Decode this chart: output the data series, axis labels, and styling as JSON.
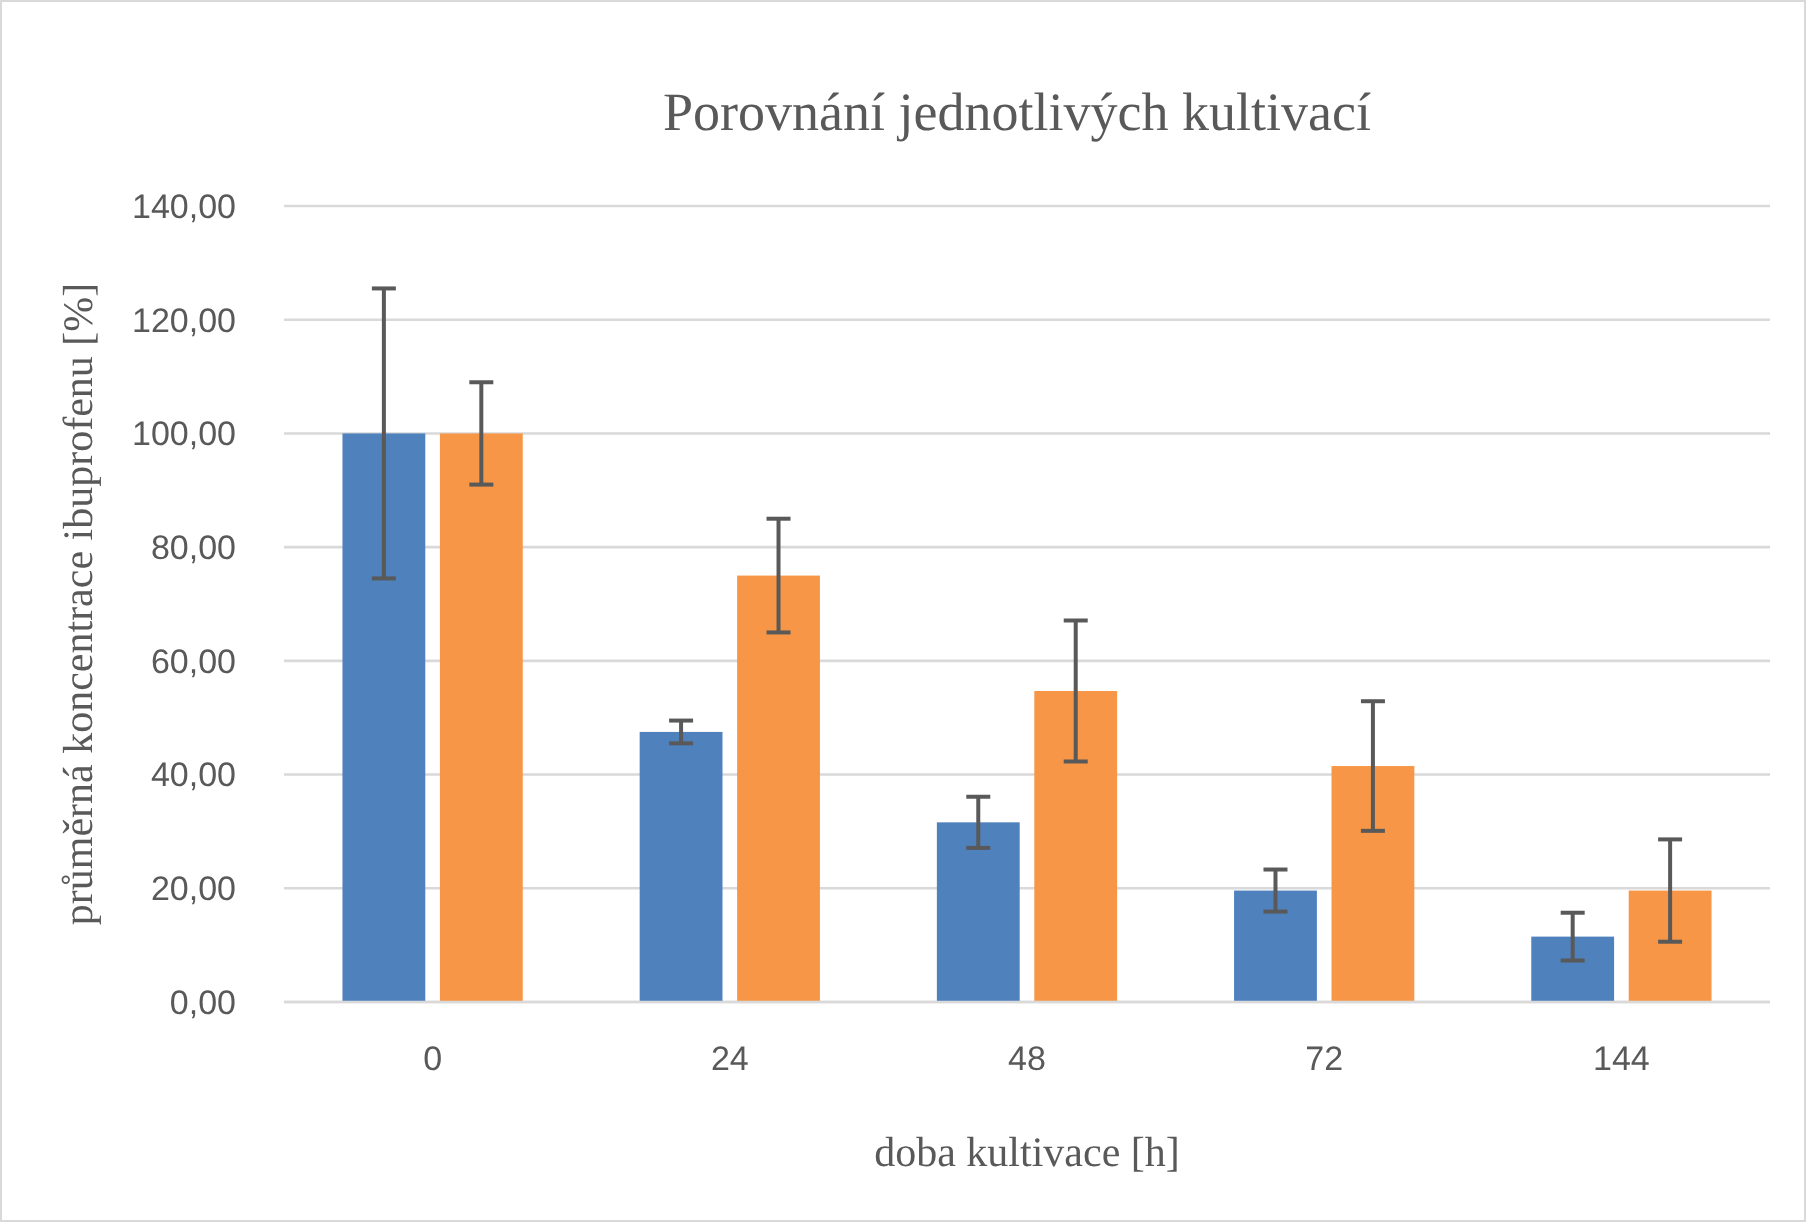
{
  "chart_data": {
    "type": "bar",
    "title": "Porovnání jednotlivých kultivací",
    "xlabel": "doba kultivace [h]",
    "ylabel": "průměrná koncentrace ibuprofenu [%]",
    "categories": [
      "0",
      "24",
      "48",
      "72",
      "144"
    ],
    "series": [
      {
        "color": "#4f81bd",
        "values": [
          100,
          47.5,
          31.6,
          19.6,
          11.5
        ],
        "errors": [
          25.5,
          2,
          4.5,
          3.7,
          4.2
        ]
      },
      {
        "color": "#f79646",
        "values": [
          100,
          75,
          54.7,
          41.5,
          19.6
        ],
        "errors": [
          9,
          10,
          12.4,
          11.4,
          9
        ]
      }
    ],
    "ylim": [
      0,
      140
    ],
    "yticks": [
      {
        "value": 0,
        "label": "0,00"
      },
      {
        "value": 20,
        "label": "20,00"
      },
      {
        "value": 40,
        "label": "40,00"
      },
      {
        "value": 60,
        "label": "60,00"
      },
      {
        "value": 80,
        "label": "80,00"
      },
      {
        "value": 100,
        "label": "100,00"
      },
      {
        "value": 120,
        "label": "120,00"
      },
      {
        "value": 140,
        "label": "140,00"
      }
    ],
    "grid": "y"
  }
}
